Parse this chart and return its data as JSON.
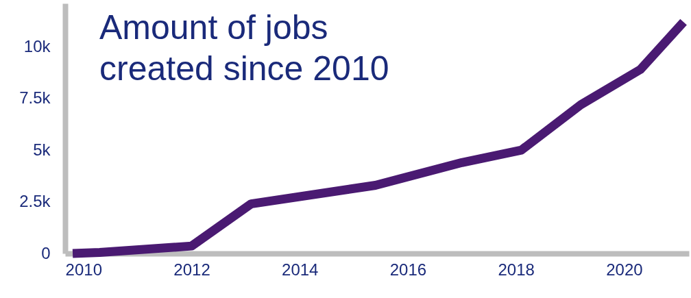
{
  "chart_data": {
    "type": "line",
    "title": "Amount of jobs created since 2010",
    "x": [
      2009.8,
      2010.3,
      2012,
      2013.1,
      2015.4,
      2017,
      2018.1,
      2019.2,
      2020.3,
      2021.1
    ],
    "series": [
      {
        "color": "#4a1a72",
        "values": [
          0,
          50,
          360,
          2400,
          3300,
          4400,
          5000,
          7200,
          8900,
          11200
        ]
      }
    ],
    "xlim": [
      2009.66,
      2021.2
    ],
    "ylim": [
      0,
      12100
    ],
    "xticks": [
      2010,
      2012,
      2014,
      2016,
      2018,
      2020
    ],
    "yticks": [
      0,
      {
        "value": 2500,
        "label": "2.5k"
      },
      {
        "value": 5000,
        "label": "5k"
      },
      {
        "value": 7500,
        "label": "7.5k"
      },
      {
        "value": 10000,
        "label": "10k"
      }
    ],
    "grid": false
  }
}
